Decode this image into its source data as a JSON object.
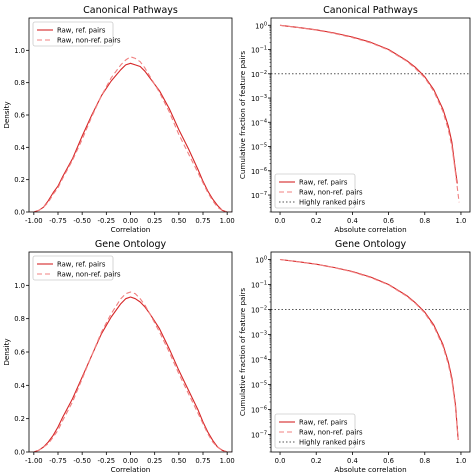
{
  "chart_data": [
    {
      "type": "line",
      "title": "Canonical Pathways",
      "xlabel": "Correlation",
      "ylabel": "Density",
      "xlim": [
        -1.05,
        1.05
      ],
      "ylim": [
        0,
        1.2
      ],
      "xticks": [
        "-1.00",
        "-0.75",
        "-0.50",
        "-0.25",
        "0.00",
        "0.25",
        "0.50",
        "0.75",
        "1.00"
      ],
      "xtick_values": [
        -1.0,
        -0.75,
        -0.5,
        -0.25,
        0.0,
        0.25,
        0.5,
        0.75,
        1.0
      ],
      "yticks": [
        "0.0",
        "0.2",
        "0.4",
        "0.6",
        "0.8",
        "1.0"
      ],
      "ytick_values": [
        0,
        0.2,
        0.4,
        0.6,
        0.8,
        1.0
      ],
      "legend": "top-left",
      "series": [
        {
          "name": "Raw, ref. pairs",
          "color": "#d62728",
          "style": "solid",
          "x": [
            -1.05,
            -1.0,
            -0.95,
            -0.9,
            -0.85,
            -0.8,
            -0.75,
            -0.7,
            -0.6,
            -0.5,
            -0.4,
            -0.3,
            -0.2,
            -0.1,
            -0.05,
            0.0,
            0.05,
            0.1,
            0.15,
            0.2,
            0.3,
            0.4,
            0.5,
            0.6,
            0.7,
            0.75,
            0.8,
            0.85,
            0.9,
            0.95,
            1.0,
            1.05
          ],
          "y": [
            0.0,
            0.0,
            0.01,
            0.03,
            0.07,
            0.12,
            0.16,
            0.22,
            0.33,
            0.47,
            0.6,
            0.72,
            0.81,
            0.88,
            0.91,
            0.92,
            0.91,
            0.9,
            0.87,
            0.83,
            0.75,
            0.64,
            0.51,
            0.39,
            0.26,
            0.19,
            0.13,
            0.08,
            0.04,
            0.01,
            0.0,
            0.0
          ]
        },
        {
          "name": "Raw, non-ref. pairs",
          "color": "#f08080",
          "style": "dashed",
          "x": [
            -1.05,
            -1.0,
            -0.95,
            -0.9,
            -0.85,
            -0.8,
            -0.75,
            -0.7,
            -0.6,
            -0.5,
            -0.4,
            -0.3,
            -0.2,
            -0.1,
            -0.05,
            0.0,
            0.05,
            0.1,
            0.15,
            0.2,
            0.3,
            0.4,
            0.5,
            0.6,
            0.7,
            0.75,
            0.8,
            0.85,
            0.9,
            0.95,
            1.0,
            1.05
          ],
          "y": [
            0.0,
            0.0,
            0.01,
            0.03,
            0.06,
            0.11,
            0.15,
            0.21,
            0.32,
            0.45,
            0.59,
            0.72,
            0.83,
            0.91,
            0.94,
            0.96,
            0.95,
            0.93,
            0.89,
            0.84,
            0.74,
            0.62,
            0.48,
            0.36,
            0.24,
            0.18,
            0.12,
            0.07,
            0.03,
            0.01,
            0.0,
            0.0
          ]
        }
      ]
    },
    {
      "type": "line",
      "title": "Canonical Pathways",
      "xlabel": "Absolute correlation",
      "ylabel": "Cumulative fraction of feature pairs",
      "xlim": [
        -0.05,
        1.05
      ],
      "y_scale": "log",
      "ylim_exponents": [
        -7.7,
        0.3
      ],
      "xticks": [
        "0.0",
        "0.2",
        "0.4",
        "0.6",
        "0.8",
        "1.0"
      ],
      "xtick_values": [
        0,
        0.2,
        0.4,
        0.6,
        0.8,
        1.0
      ],
      "ytick_exponents": [
        0,
        -1,
        -2,
        -3,
        -4,
        -5,
        -6,
        -7
      ],
      "ytick_base": "10",
      "legend": "bottom-left",
      "hline": {
        "name": "Highly ranked pairs",
        "y": 0.01,
        "color": "#555555",
        "style": "dotted"
      },
      "series": [
        {
          "name": "Raw, ref. pairs",
          "color": "#d62728",
          "style": "solid",
          "x": [
            0,
            0.1,
            0.2,
            0.3,
            0.4,
            0.5,
            0.6,
            0.7,
            0.75,
            0.8,
            0.85,
            0.9,
            0.93,
            0.95,
            0.97,
            0.98
          ],
          "y": [
            1.0,
            0.82,
            0.65,
            0.48,
            0.33,
            0.2,
            0.1,
            0.035,
            0.018,
            0.0075,
            0.0022,
            0.00035,
            7e-05,
            1.5e-05,
            1e-06,
            3e-07
          ]
        },
        {
          "name": "Raw, non-ref. pairs",
          "color": "#f08080",
          "style": "dashed",
          "x": [
            0,
            0.1,
            0.2,
            0.3,
            0.4,
            0.5,
            0.6,
            0.7,
            0.75,
            0.8,
            0.85,
            0.9,
            0.93,
            0.95,
            0.97,
            0.99
          ],
          "y": [
            1.0,
            0.81,
            0.63,
            0.46,
            0.31,
            0.19,
            0.095,
            0.033,
            0.016,
            0.0068,
            0.0019,
            0.00028,
            5e-05,
            1e-05,
            8e-07,
            5e-08
          ]
        }
      ]
    },
    {
      "type": "line",
      "title": "Gene Ontology",
      "xlabel": "Correlation",
      "ylabel": "Density",
      "xlim": [
        -1.05,
        1.05
      ],
      "ylim": [
        0,
        1.2
      ],
      "xticks": [
        "-1.00",
        "-0.75",
        "-0.50",
        "-0.25",
        "0.00",
        "0.25",
        "0.50",
        "0.75",
        "1.00"
      ],
      "xtick_values": [
        -1.0,
        -0.75,
        -0.5,
        -0.25,
        0.0,
        0.25,
        0.5,
        0.75,
        1.0
      ],
      "yticks": [
        "0.0",
        "0.2",
        "0.4",
        "0.6",
        "0.8",
        "1.0"
      ],
      "ytick_values": [
        0,
        0.2,
        0.4,
        0.6,
        0.8,
        1.0
      ],
      "legend": "top-left",
      "series": [
        {
          "name": "Raw, ref. pairs",
          "color": "#d62728",
          "style": "solid",
          "x": [
            -1.05,
            -1.0,
            -0.95,
            -0.9,
            -0.85,
            -0.8,
            -0.75,
            -0.7,
            -0.6,
            -0.5,
            -0.4,
            -0.3,
            -0.2,
            -0.1,
            -0.05,
            0.0,
            0.05,
            0.1,
            0.15,
            0.2,
            0.3,
            0.4,
            0.5,
            0.6,
            0.7,
            0.75,
            0.8,
            0.85,
            0.9,
            0.95,
            1.0,
            1.05
          ],
          "y": [
            0.0,
            0.0,
            0.01,
            0.03,
            0.06,
            0.1,
            0.15,
            0.21,
            0.32,
            0.45,
            0.58,
            0.71,
            0.81,
            0.89,
            0.92,
            0.93,
            0.92,
            0.9,
            0.87,
            0.83,
            0.74,
            0.62,
            0.49,
            0.37,
            0.25,
            0.18,
            0.12,
            0.07,
            0.03,
            0.01,
            0.0,
            0.0
          ]
        },
        {
          "name": "Raw, non-ref. pairs",
          "color": "#f08080",
          "style": "dashed",
          "x": [
            -1.05,
            -1.0,
            -0.95,
            -0.9,
            -0.85,
            -0.8,
            -0.75,
            -0.7,
            -0.6,
            -0.5,
            -0.4,
            -0.3,
            -0.2,
            -0.1,
            -0.05,
            0.0,
            0.05,
            0.1,
            0.15,
            0.2,
            0.3,
            0.4,
            0.5,
            0.6,
            0.7,
            0.75,
            0.8,
            0.85,
            0.9,
            0.95,
            1.0,
            1.05
          ],
          "y": [
            0.0,
            0.0,
            0.01,
            0.03,
            0.05,
            0.09,
            0.13,
            0.19,
            0.3,
            0.44,
            0.58,
            0.72,
            0.83,
            0.92,
            0.95,
            0.96,
            0.95,
            0.92,
            0.88,
            0.83,
            0.72,
            0.6,
            0.47,
            0.35,
            0.23,
            0.17,
            0.11,
            0.06,
            0.03,
            0.01,
            0.0,
            0.0
          ]
        }
      ]
    },
    {
      "type": "line",
      "title": "Gene Ontology",
      "xlabel": "Absolute correlation",
      "ylabel": "Cumulative fraction of feature pairs",
      "xlim": [
        -0.05,
        1.05
      ],
      "y_scale": "log",
      "ylim_exponents": [
        -7.7,
        0.3
      ],
      "xticks": [
        "0.0",
        "0.2",
        "0.4",
        "0.6",
        "0.8",
        "1.0"
      ],
      "xtick_values": [
        0,
        0.2,
        0.4,
        0.6,
        0.8,
        1.0
      ],
      "ytick_exponents": [
        0,
        -1,
        -2,
        -3,
        -4,
        -5,
        -6,
        -7
      ],
      "ytick_base": "10",
      "legend": "bottom-left",
      "hline": {
        "name": "Highly ranked pairs",
        "y": 0.01,
        "color": "#555555",
        "style": "dotted"
      },
      "series": [
        {
          "name": "Raw, ref. pairs",
          "color": "#d62728",
          "style": "solid",
          "x": [
            0,
            0.1,
            0.2,
            0.3,
            0.4,
            0.5,
            0.6,
            0.7,
            0.75,
            0.8,
            0.85,
            0.9,
            0.93,
            0.95,
            0.97,
            0.985
          ],
          "y": [
            1.0,
            0.82,
            0.65,
            0.48,
            0.33,
            0.2,
            0.1,
            0.036,
            0.018,
            0.0078,
            0.0024,
            0.0004,
            8e-05,
            1.8e-05,
            1.5e-06,
            6e-08
          ]
        },
        {
          "name": "Raw, non-ref. pairs",
          "color": "#f08080",
          "style": "dashed",
          "x": [
            0,
            0.1,
            0.2,
            0.3,
            0.4,
            0.5,
            0.6,
            0.7,
            0.75,
            0.8,
            0.85,
            0.9,
            0.93,
            0.95,
            0.97,
            0.985
          ],
          "y": [
            1.0,
            0.81,
            0.64,
            0.47,
            0.32,
            0.19,
            0.096,
            0.034,
            0.017,
            0.0072,
            0.0021,
            0.00034,
            6.5e-05,
            1.4e-05,
            1.2e-06,
            6e-08
          ]
        }
      ]
    }
  ]
}
